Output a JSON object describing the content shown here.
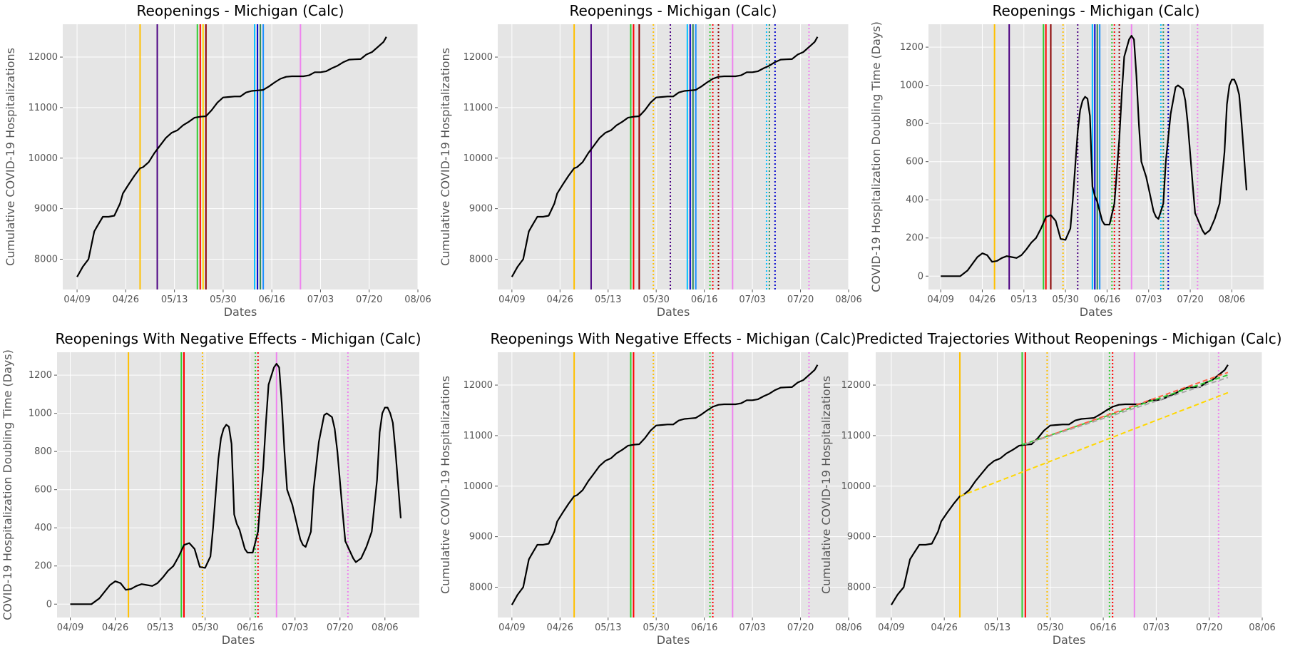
{
  "figure": {
    "xlabel": "Dates",
    "xticks": [
      "04/09",
      "04/26",
      "05/13",
      "05/30",
      "06/16",
      "07/03",
      "07/20",
      "08/06"
    ]
  },
  "chart_data": [
    {
      "type": "line",
      "title": "Reopenings - Michigan (Calc)",
      "xlabel": "Dates",
      "ylabel": "Cumulative COVID-19 Hospitalizations",
      "xlim": [
        "2020-04-04",
        "2020-08-06"
      ],
      "ylim": [
        7400,
        12650
      ],
      "yticks": [
        8000,
        9000,
        10000,
        11000,
        12000
      ],
      "series": [
        {
          "color": "#000000",
          "style": "solid",
          "x": [
            "2020-04-09",
            "2020-04-11",
            "2020-04-13",
            "2020-04-15",
            "2020-04-16",
            "2020-04-18",
            "2020-04-20",
            "2020-04-22",
            "2020-04-24",
            "2020-04-25",
            "2020-04-27",
            "2020-04-29",
            "2020-05-01",
            "2020-05-02",
            "2020-05-04",
            "2020-05-06",
            "2020-05-08",
            "2020-05-10",
            "2020-05-12",
            "2020-05-14",
            "2020-05-16",
            "2020-05-18",
            "2020-05-20",
            "2020-05-22",
            "2020-05-24",
            "2020-05-26",
            "2020-05-28",
            "2020-05-30",
            "2020-06-01",
            "2020-06-03",
            "2020-06-05",
            "2020-06-07",
            "2020-06-09",
            "2020-06-11",
            "2020-06-13",
            "2020-06-15",
            "2020-06-17",
            "2020-06-19",
            "2020-06-21",
            "2020-06-23",
            "2020-06-25",
            "2020-06-27",
            "2020-06-29",
            "2020-07-01",
            "2020-07-03",
            "2020-07-05",
            "2020-07-07",
            "2020-07-09",
            "2020-07-11",
            "2020-07-13",
            "2020-07-15",
            "2020-07-17",
            "2020-07-19",
            "2020-07-21",
            "2020-07-23",
            "2020-07-25",
            "2020-07-26"
          ],
          "y": [
            7650,
            7850,
            8000,
            8550,
            8650,
            8840,
            8840,
            8860,
            9100,
            9300,
            9480,
            9650,
            9800,
            9820,
            9920,
            10100,
            10250,
            10400,
            10500,
            10550,
            10650,
            10720,
            10800,
            10820,
            10830,
            10950,
            11100,
            11200,
            11210,
            11220,
            11220,
            11300,
            11330,
            11340,
            11350,
            11420,
            11500,
            11570,
            11610,
            11620,
            11620,
            11620,
            11640,
            11700,
            11700,
            11720,
            11780,
            11830,
            11900,
            11950,
            11955,
            11960,
            12050,
            12100,
            12200,
            12300,
            12400
          ]
        }
      ],
      "reopening_lines": [
        {
          "date": "2020-05-01",
          "color": "#FFC000",
          "style": "solid"
        },
        {
          "date": "2020-05-07",
          "color": "#4B0082",
          "style": "solid"
        },
        {
          "date": "2020-05-21",
          "color": "#32CD32",
          "style": "solid"
        },
        {
          "date": "2020-05-22",
          "color": "#FF0000",
          "style": "solid"
        },
        {
          "date": "2020-05-23",
          "color": "#FFD700",
          "style": "solid"
        },
        {
          "date": "2020-05-24",
          "color": "#8B0000",
          "style": "solid"
        },
        {
          "date": "2020-06-10",
          "color": "#00BFFF",
          "style": "solid"
        },
        {
          "date": "2020-06-11",
          "color": "#0000CD",
          "style": "solid"
        },
        {
          "date": "2020-06-12",
          "color": "#2E8B57",
          "style": "solid"
        },
        {
          "date": "2020-06-13",
          "color": "#1E90FF",
          "style": "solid"
        },
        {
          "date": "2020-06-26",
          "color": "#EE82EE",
          "style": "solid"
        }
      ]
    },
    {
      "type": "line",
      "title": "Reopenings - Michigan (Calc)",
      "xlabel": "Dates",
      "ylabel": "Cumulative COVID-19 Hospitalizations",
      "xlim": [
        "2020-04-04",
        "2020-08-06"
      ],
      "ylim": [
        7400,
        12650
      ],
      "yticks": [
        8000,
        9000,
        10000,
        11000,
        12000
      ],
      "series": [
        {
          "color": "#000000",
          "style": "solid",
          "ref": 0
        }
      ],
      "reopening_lines": [
        {
          "date": "2020-05-01",
          "color": "#FFC000",
          "style": "solid"
        },
        {
          "date": "2020-05-07",
          "color": "#4B0082",
          "style": "solid"
        },
        {
          "date": "2020-05-21",
          "color": "#32CD32",
          "style": "solid"
        },
        {
          "date": "2020-05-22",
          "color": "#FF0000",
          "style": "solid"
        },
        {
          "date": "2020-05-24",
          "color": "#8B0000",
          "style": "solid"
        },
        {
          "date": "2020-05-29",
          "color": "#FFC000",
          "style": "dotted"
        },
        {
          "date": "2020-06-04",
          "color": "#4B0082",
          "style": "dotted"
        },
        {
          "date": "2020-06-10",
          "color": "#00BFFF",
          "style": "solid"
        },
        {
          "date": "2020-06-11",
          "color": "#0000CD",
          "style": "solid"
        },
        {
          "date": "2020-06-12",
          "color": "#2E8B57",
          "style": "solid"
        },
        {
          "date": "2020-06-13",
          "color": "#1E90FF",
          "style": "solid"
        },
        {
          "date": "2020-06-18",
          "color": "#32CD32",
          "style": "dotted"
        },
        {
          "date": "2020-06-19",
          "color": "#FF0000",
          "style": "dotted"
        },
        {
          "date": "2020-06-21",
          "color": "#8B0000",
          "style": "dotted"
        },
        {
          "date": "2020-06-26",
          "color": "#EE82EE",
          "style": "solid"
        },
        {
          "date": "2020-07-08",
          "color": "#00BFFF",
          "style": "dotted"
        },
        {
          "date": "2020-07-09",
          "color": "#2E8B57",
          "style": "dotted"
        },
        {
          "date": "2020-07-11",
          "color": "#0000CD",
          "style": "dotted"
        },
        {
          "date": "2020-07-23",
          "color": "#EE82EE",
          "style": "dotted"
        }
      ]
    },
    {
      "type": "line",
      "title": "Reopenings - Michigan (Calc)",
      "xlabel": "Dates",
      "ylabel": "COVID-19 Hospitalization Doubling Time (Days)",
      "xlim": [
        "2020-04-04",
        "2020-08-19"
      ],
      "ylim": [
        -70,
        1320
      ],
      "yticks": [
        0,
        200,
        400,
        600,
        800,
        1000,
        1200
      ],
      "series": [
        {
          "color": "#000000",
          "style": "solid",
          "x": [
            "2020-04-09",
            "2020-04-17",
            "2020-04-20",
            "2020-04-24",
            "2020-04-26",
            "2020-04-28",
            "2020-04-30",
            "2020-05-02",
            "2020-05-04",
            "2020-05-06",
            "2020-05-08",
            "2020-05-10",
            "2020-05-12",
            "2020-05-14",
            "2020-05-16",
            "2020-05-18",
            "2020-05-20",
            "2020-05-22",
            "2020-05-24",
            "2020-05-26",
            "2020-05-28",
            "2020-05-30",
            "2020-06-01",
            "2020-06-02",
            "2020-06-04",
            "2020-06-05",
            "2020-06-06",
            "2020-06-07",
            "2020-06-08",
            "2020-06-09",
            "2020-06-10",
            "2020-06-11",
            "2020-06-12",
            "2020-06-13",
            "2020-06-14",
            "2020-06-15",
            "2020-06-17",
            "2020-06-19",
            "2020-06-21",
            "2020-06-22",
            "2020-06-23",
            "2020-06-25",
            "2020-06-26",
            "2020-06-27",
            "2020-06-28",
            "2020-06-29",
            "2020-06-30",
            "2020-07-02",
            "2020-07-03",
            "2020-07-04",
            "2020-07-05",
            "2020-07-06",
            "2020-07-07",
            "2020-07-09",
            "2020-07-10",
            "2020-07-12",
            "2020-07-14",
            "2020-07-15",
            "2020-07-17",
            "2020-07-18",
            "2020-07-19",
            "2020-07-21",
            "2020-07-22",
            "2020-07-23",
            "2020-07-24",
            "2020-07-25",
            "2020-07-26",
            "2020-07-28",
            "2020-07-30",
            "2020-08-01",
            "2020-08-03",
            "2020-08-04",
            "2020-08-05",
            "2020-08-06",
            "2020-08-07",
            "2020-08-08",
            "2020-08-09",
            "2020-08-10",
            "2020-08-12"
          ],
          "y": [
            0,
            0,
            30,
            100,
            120,
            110,
            75,
            80,
            95,
            105,
            100,
            95,
            110,
            140,
            175,
            200,
            250,
            310,
            320,
            290,
            195,
            190,
            250,
            400,
            760,
            870,
            920,
            940,
            930,
            840,
            470,
            420,
            390,
            340,
            290,
            270,
            270,
            380,
            720,
            950,
            1150,
            1240,
            1260,
            1240,
            1050,
            800,
            600,
            520,
            460,
            400,
            340,
            310,
            300,
            380,
            600,
            850,
            990,
            1000,
            980,
            920,
            800,
            480,
            330,
            300,
            270,
            240,
            220,
            240,
            300,
            380,
            650,
            900,
            1000,
            1030,
            1030,
            1000,
            950,
            800,
            450
          ]
        }
      ],
      "reopening_lines": [
        {
          "date": "2020-05-01",
          "color": "#FFC000",
          "style": "solid"
        },
        {
          "date": "2020-05-07",
          "color": "#4B0082",
          "style": "solid"
        },
        {
          "date": "2020-05-21",
          "color": "#32CD32",
          "style": "solid"
        },
        {
          "date": "2020-05-22",
          "color": "#FF0000",
          "style": "solid"
        },
        {
          "date": "2020-05-24",
          "color": "#8B0000",
          "style": "solid"
        },
        {
          "date": "2020-05-29",
          "color": "#FFC000",
          "style": "dotted"
        },
        {
          "date": "2020-06-04",
          "color": "#4B0082",
          "style": "dotted"
        },
        {
          "date": "2020-06-10",
          "color": "#00BFFF",
          "style": "solid"
        },
        {
          "date": "2020-06-11",
          "color": "#0000CD",
          "style": "solid"
        },
        {
          "date": "2020-06-12",
          "color": "#2E8B57",
          "style": "solid"
        },
        {
          "date": "2020-06-13",
          "color": "#1E90FF",
          "style": "solid"
        },
        {
          "date": "2020-06-18",
          "color": "#32CD32",
          "style": "dotted"
        },
        {
          "date": "2020-06-19",
          "color": "#FF0000",
          "style": "dotted"
        },
        {
          "date": "2020-06-21",
          "color": "#8B0000",
          "style": "dotted"
        },
        {
          "date": "2020-06-26",
          "color": "#EE82EE",
          "style": "solid"
        },
        {
          "date": "2020-07-08",
          "color": "#00BFFF",
          "style": "dotted"
        },
        {
          "date": "2020-07-09",
          "color": "#2E8B57",
          "style": "dotted"
        },
        {
          "date": "2020-07-11",
          "color": "#0000CD",
          "style": "dotted"
        },
        {
          "date": "2020-07-23",
          "color": "#EE82EE",
          "style": "dotted"
        }
      ]
    },
    {
      "type": "line",
      "title": "Reopenings With Negative Effects - Michigan (Calc)",
      "xlabel": "Dates",
      "ylabel": "COVID-19 Hospitalization Doubling Time (Days)",
      "xlim": [
        "2020-04-04",
        "2020-08-19"
      ],
      "ylim": [
        -70,
        1320
      ],
      "yticks": [
        0,
        200,
        400,
        600,
        800,
        1000,
        1200
      ],
      "series": [
        {
          "color": "#000000",
          "style": "solid",
          "ref": 2
        }
      ],
      "reopening_lines": [
        {
          "date": "2020-05-01",
          "color": "#FFC000",
          "style": "solid"
        },
        {
          "date": "2020-05-21",
          "color": "#32CD32",
          "style": "solid"
        },
        {
          "date": "2020-05-22",
          "color": "#FF0000",
          "style": "solid"
        },
        {
          "date": "2020-05-29",
          "color": "#FFC000",
          "style": "dotted"
        },
        {
          "date": "2020-06-18",
          "color": "#32CD32",
          "style": "dotted"
        },
        {
          "date": "2020-06-19",
          "color": "#FF0000",
          "style": "dotted"
        },
        {
          "date": "2020-06-26",
          "color": "#EE82EE",
          "style": "solid"
        },
        {
          "date": "2020-07-23",
          "color": "#EE82EE",
          "style": "dotted"
        }
      ]
    },
    {
      "type": "line",
      "title": "Reopenings With Negative Effects - Michigan (Calc)",
      "xlabel": "Dates",
      "ylabel": "Cumulative COVID-19 Hospitalizations",
      "xlim": [
        "2020-04-04",
        "2020-08-06"
      ],
      "ylim": [
        7400,
        12650
      ],
      "yticks": [
        8000,
        9000,
        10000,
        11000,
        12000
      ],
      "series": [
        {
          "color": "#000000",
          "style": "solid",
          "ref": 0
        }
      ],
      "reopening_lines": [
        {
          "date": "2020-05-01",
          "color": "#FFC000",
          "style": "solid"
        },
        {
          "date": "2020-05-21",
          "color": "#32CD32",
          "style": "solid"
        },
        {
          "date": "2020-05-22",
          "color": "#FF0000",
          "style": "solid"
        },
        {
          "date": "2020-05-29",
          "color": "#FFC000",
          "style": "dotted"
        },
        {
          "date": "2020-06-18",
          "color": "#32CD32",
          "style": "dotted"
        },
        {
          "date": "2020-06-19",
          "color": "#FF0000",
          "style": "dotted"
        },
        {
          "date": "2020-06-26",
          "color": "#EE82EE",
          "style": "solid"
        },
        {
          "date": "2020-07-23",
          "color": "#EE82EE",
          "style": "dotted"
        }
      ]
    },
    {
      "type": "line",
      "title": "Predicted Trajectories Without Reopenings - Michigan (Calc)",
      "xlabel": "Dates",
      "ylabel": "Cumulative COVID-19 Hospitalizations",
      "xlim": [
        "2020-04-04",
        "2020-08-06"
      ],
      "ylim": [
        7400,
        12650
      ],
      "yticks": [
        8000,
        9000,
        10000,
        11000,
        12000
      ],
      "series": [
        {
          "color": "#000000",
          "style": "solid",
          "ref": 0
        },
        {
          "color": "#FFD700",
          "style": "dashed",
          "x": [
            "2020-05-01",
            "2020-07-26"
          ],
          "y": [
            9800,
            11850
          ]
        },
        {
          "color": "#32CD32",
          "style": "dashed",
          "x": [
            "2020-05-21",
            "2020-07-26"
          ],
          "y": [
            10820,
            12200
          ]
        },
        {
          "color": "#FF6347",
          "style": "dashed",
          "x": [
            "2020-05-22",
            "2020-07-26"
          ],
          "y": [
            10830,
            12250
          ]
        },
        {
          "color": "#A9A9A9",
          "style": "dashed",
          "x": [
            "2020-05-22",
            "2020-07-26"
          ],
          "y": [
            10830,
            12150
          ]
        }
      ],
      "reopening_lines": [
        {
          "date": "2020-05-01",
          "color": "#FFC000",
          "style": "solid"
        },
        {
          "date": "2020-05-21",
          "color": "#32CD32",
          "style": "solid"
        },
        {
          "date": "2020-05-22",
          "color": "#FF0000",
          "style": "solid"
        },
        {
          "date": "2020-05-29",
          "color": "#FFC000",
          "style": "dotted"
        },
        {
          "date": "2020-06-18",
          "color": "#32CD32",
          "style": "dotted"
        },
        {
          "date": "2020-06-19",
          "color": "#FF0000",
          "style": "dotted"
        },
        {
          "date": "2020-06-26",
          "color": "#EE82EE",
          "style": "solid"
        },
        {
          "date": "2020-07-23",
          "color": "#EE82EE",
          "style": "dotted"
        }
      ]
    }
  ]
}
